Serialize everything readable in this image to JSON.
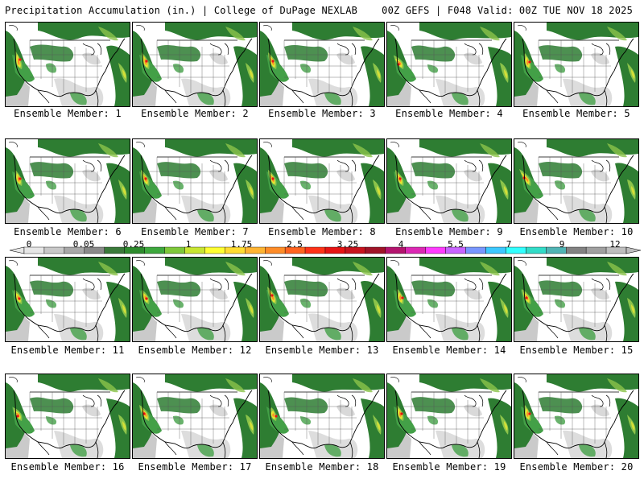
{
  "header": {
    "left": "Precipitation Accumulation (in.) | College of DuPage NEXLAB",
    "right": "00Z GEFS | F048 Valid: 00Z TUE NOV 18 2025"
  },
  "members": [
    {
      "label": "Ensemble Member: 1"
    },
    {
      "label": "Ensemble Member: 2"
    },
    {
      "label": "Ensemble Member: 3"
    },
    {
      "label": "Ensemble Member: 4"
    },
    {
      "label": "Ensemble Member: 5"
    },
    {
      "label": "Ensemble Member: 6"
    },
    {
      "label": "Ensemble Member: 7"
    },
    {
      "label": "Ensemble Member: 8"
    },
    {
      "label": "Ensemble Member: 9"
    },
    {
      "label": "Ensemble Member: 10"
    },
    {
      "label": "Ensemble Member: 11"
    },
    {
      "label": "Ensemble Member: 12"
    },
    {
      "label": "Ensemble Member: 13"
    },
    {
      "label": "Ensemble Member: 14"
    },
    {
      "label": "Ensemble Member: 15"
    },
    {
      "label": "Ensemble Member: 16"
    },
    {
      "label": "Ensemble Member: 17"
    },
    {
      "label": "Ensemble Member: 18"
    },
    {
      "label": "Ensemble Member: 19"
    },
    {
      "label": "Ensemble Member: 20"
    }
  ],
  "legend": {
    "labels": [
      "0",
      "0.05",
      "0.25",
      "1",
      "1.75",
      "2.5",
      "3.25",
      "4",
      "5.5",
      "7",
      "9",
      "12"
    ],
    "colors": [
      "#e6e6e6",
      "#c8c8c8",
      "#a8a8a8",
      "#8a8a8a",
      "#3a7a3a",
      "#2e8b2e",
      "#3da83d",
      "#7ec83a",
      "#c8e632",
      "#ffff32",
      "#ffdc32",
      "#ffb432",
      "#ff8c28",
      "#ff6420",
      "#ff3218",
      "#e61414",
      "#c8141e",
      "#a01428",
      "#b4146e",
      "#dc28b4",
      "#ff3cff",
      "#c864ff",
      "#7896ff",
      "#3cc8ff",
      "#32ffff",
      "#32dcc8",
      "#50b4b4",
      "#828282",
      "#a0a0a0",
      "#bebebe"
    ]
  },
  "colors": {
    "background": "#ffffff",
    "land": "#ffffff",
    "precip_dark": "#2e7d32",
    "precip_mid": "#43a047",
    "precip_light": "#8bc34a",
    "precip_yellow": "#e6e632",
    "precip_orange": "#ff8c28",
    "precip_red": "#e61414",
    "trace_gray": "#b4b4b4"
  }
}
